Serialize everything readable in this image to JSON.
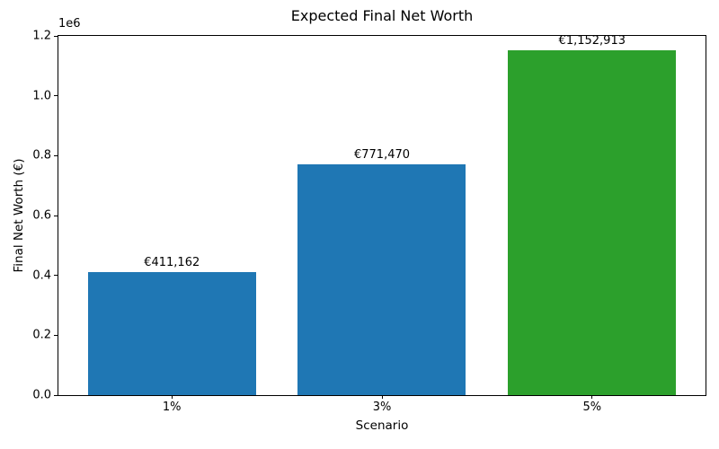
{
  "chart_data": {
    "type": "bar",
    "title": "Expected Final Net Worth",
    "xlabel": "Scenario",
    "ylabel": "Final Net Worth (€)",
    "y_offset_text": "1e6",
    "categories": [
      "1%",
      "3%",
      "5%"
    ],
    "values": [
      411162,
      771470,
      1152913
    ],
    "bar_labels": [
      "€411,162",
      "€771,470",
      "€1,152,913"
    ],
    "bar_colors": [
      "#1f77b4",
      "#1f77b4",
      "#2ca02c"
    ],
    "ylim": [
      0,
      1200000
    ],
    "yticks": [
      0,
      200000,
      400000,
      600000,
      800000,
      1000000,
      1200000
    ],
    "ytick_labels": [
      "0.0",
      "0.2",
      "0.4",
      "0.6",
      "0.8",
      "1.0",
      "1.2"
    ],
    "xlim": [
      -0.54,
      2.54
    ],
    "bar_width_fraction": 0.8,
    "grid": false,
    "legend_position": "none",
    "background_color": "#ffffff",
    "text_color": "#000000"
  }
}
